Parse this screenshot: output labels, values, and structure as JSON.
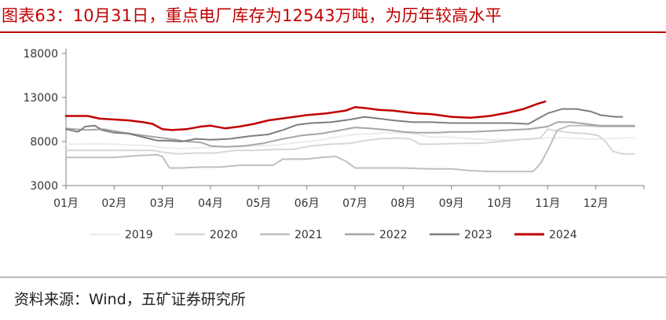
{
  "title": "图表63：10月31日，重点电厂库存为12543万吨，为历年较高水平",
  "source": "资料来源：Wind，五矿证券研究所",
  "chart_data": {
    "type": "line",
    "ylim": [
      3000,
      18000
    ],
    "yticks": [
      3000,
      8000,
      13000,
      18000
    ],
    "ytick_labels": [
      "3000",
      "8000",
      "13000",
      "18000"
    ],
    "xlim": [
      1,
      13
    ],
    "xticks": [
      1,
      2,
      3,
      4,
      5,
      6,
      7,
      8,
      9,
      10,
      11,
      12
    ],
    "xtick_labels": [
      "01月",
      "02月",
      "03月",
      "04月",
      "05月",
      "06月",
      "07月",
      "08月",
      "09月",
      "10月",
      "11月",
      "12月"
    ],
    "grid": false,
    "legend_position": "bottom",
    "series": [
      {
        "name": "2019",
        "color": "#ececec",
        "width": 2,
        "points": [
          [
            1,
            7700
          ],
          [
            1.3,
            7700
          ],
          [
            1.6,
            7750
          ],
          [
            2,
            7700
          ],
          [
            2.4,
            7600
          ],
          [
            2.8,
            7500
          ],
          [
            3,
            7300
          ],
          [
            3.4,
            7200
          ],
          [
            3.8,
            7300
          ],
          [
            4.2,
            7400
          ],
          [
            4.6,
            7400
          ],
          [
            5,
            7500
          ],
          [
            5.4,
            7600
          ],
          [
            5.8,
            7900
          ],
          [
            6.2,
            8100
          ],
          [
            6.6,
            8500
          ],
          [
            7,
            8800
          ],
          [
            7.4,
            8900
          ],
          [
            7.8,
            9000
          ],
          [
            8.2,
            8900
          ],
          [
            8.6,
            8500
          ],
          [
            9,
            8500
          ],
          [
            9.4,
            8300
          ],
          [
            9.8,
            8200
          ],
          [
            10.2,
            8200
          ],
          [
            10.6,
            8300
          ],
          [
            11,
            8400
          ],
          [
            11.4,
            8400
          ],
          [
            11.8,
            8300
          ],
          [
            12.2,
            8300
          ],
          [
            12.6,
            8400
          ],
          [
            12.8,
            8400
          ]
        ]
      },
      {
        "name": "2020",
        "color": "#d7d7d7",
        "width": 2,
        "points": [
          [
            1,
            7000
          ],
          [
            1.5,
            7000
          ],
          [
            2,
            7000
          ],
          [
            2.4,
            7000
          ],
          [
            2.8,
            7000
          ],
          [
            3,
            6800
          ],
          [
            3.3,
            6600
          ],
          [
            3.7,
            6700
          ],
          [
            4.1,
            6700
          ],
          [
            4.5,
            7000
          ],
          [
            4.9,
            7000
          ],
          [
            5.3,
            7100
          ],
          [
            5.7,
            7100
          ],
          [
            6.1,
            7500
          ],
          [
            6.5,
            7700
          ],
          [
            6.9,
            7800
          ],
          [
            7.2,
            8100
          ],
          [
            7.5,
            8300
          ],
          [
            7.9,
            8400
          ],
          [
            8.15,
            8300
          ],
          [
            8.35,
            7700
          ],
          [
            8.7,
            7700
          ],
          [
            9.2,
            7800
          ],
          [
            9.6,
            7800
          ],
          [
            10,
            8000
          ],
          [
            10.4,
            8200
          ],
          [
            10.7,
            8300
          ],
          [
            10.85,
            8400
          ],
          [
            11,
            9400
          ],
          [
            11.2,
            9200
          ],
          [
            11.5,
            9000
          ],
          [
            11.8,
            8900
          ],
          [
            12.05,
            8700
          ],
          [
            12.2,
            8000
          ],
          [
            12.35,
            6900
          ],
          [
            12.55,
            6600
          ],
          [
            12.8,
            6600
          ]
        ]
      },
      {
        "name": "2021",
        "color": "#bfbfbf",
        "width": 2,
        "points": [
          [
            1,
            6200
          ],
          [
            1.5,
            6200
          ],
          [
            2,
            6200
          ],
          [
            2.5,
            6400
          ],
          [
            2.9,
            6500
          ],
          [
            3,
            6300
          ],
          [
            3.15,
            5000
          ],
          [
            3.4,
            5000
          ],
          [
            3.8,
            5100
          ],
          [
            4.2,
            5100
          ],
          [
            4.6,
            5300
          ],
          [
            5,
            5300
          ],
          [
            5.3,
            5300
          ],
          [
            5.5,
            6000
          ],
          [
            6,
            6000
          ],
          [
            6.3,
            6200
          ],
          [
            6.6,
            6300
          ],
          [
            6.8,
            5800
          ],
          [
            7,
            5000
          ],
          [
            7.3,
            5000
          ],
          [
            7.7,
            5000
          ],
          [
            8,
            5000
          ],
          [
            8.5,
            4900
          ],
          [
            9,
            4900
          ],
          [
            9.4,
            4700
          ],
          [
            9.8,
            4600
          ],
          [
            10.2,
            4600
          ],
          [
            10.5,
            4600
          ],
          [
            10.7,
            4600
          ],
          [
            10.85,
            5500
          ],
          [
            11,
            7000
          ],
          [
            11.2,
            9300
          ],
          [
            11.45,
            9800
          ],
          [
            11.8,
            9800
          ],
          [
            12.1,
            9700
          ],
          [
            12.4,
            9700
          ],
          [
            12.8,
            9700
          ]
        ]
      },
      {
        "name": "2022",
        "color": "#a6a6a6",
        "width": 2,
        "points": [
          [
            1,
            9500
          ],
          [
            1.4,
            9300
          ],
          [
            1.8,
            9400
          ],
          [
            2.2,
            9000
          ],
          [
            2.6,
            8700
          ],
          [
            3,
            8400
          ],
          [
            3.3,
            8200
          ],
          [
            3.5,
            8000
          ],
          [
            3.8,
            7900
          ],
          [
            4,
            7500
          ],
          [
            4.3,
            7400
          ],
          [
            4.7,
            7500
          ],
          [
            5.1,
            7800
          ],
          [
            5.5,
            8300
          ],
          [
            5.9,
            8700
          ],
          [
            6.3,
            8900
          ],
          [
            6.6,
            9200
          ],
          [
            7,
            9600
          ],
          [
            7.3,
            9500
          ],
          [
            7.7,
            9300
          ],
          [
            8,
            9100
          ],
          [
            8.3,
            9000
          ],
          [
            8.7,
            9000
          ],
          [
            9,
            9100
          ],
          [
            9.4,
            9100
          ],
          [
            9.8,
            9200
          ],
          [
            10.2,
            9300
          ],
          [
            10.6,
            9400
          ],
          [
            11,
            9700
          ],
          [
            11.2,
            10200
          ],
          [
            11.5,
            10200
          ],
          [
            11.8,
            10000
          ],
          [
            12.1,
            9800
          ],
          [
            12.4,
            9800
          ],
          [
            12.8,
            9800
          ]
        ]
      },
      {
        "name": "2023",
        "color": "#7f7f7f",
        "width": 2,
        "points": [
          [
            1,
            9400
          ],
          [
            1.25,
            9100
          ],
          [
            1.4,
            9700
          ],
          [
            1.6,
            9800
          ],
          [
            1.75,
            9300
          ],
          [
            2,
            9000
          ],
          [
            2.3,
            8900
          ],
          [
            2.6,
            8500
          ],
          [
            2.9,
            8100
          ],
          [
            3.1,
            8100
          ],
          [
            3.4,
            8000
          ],
          [
            3.7,
            8300
          ],
          [
            4,
            8200
          ],
          [
            4.4,
            8300
          ],
          [
            4.8,
            8600
          ],
          [
            5.2,
            8800
          ],
          [
            5.5,
            9300
          ],
          [
            5.8,
            9900
          ],
          [
            6.1,
            10100
          ],
          [
            6.5,
            10200
          ],
          [
            6.9,
            10500
          ],
          [
            7.2,
            10800
          ],
          [
            7.5,
            10600
          ],
          [
            7.8,
            10400
          ],
          [
            8.2,
            10200
          ],
          [
            8.6,
            10200
          ],
          [
            9,
            10100
          ],
          [
            9.4,
            10100
          ],
          [
            9.8,
            10100
          ],
          [
            10.2,
            10100
          ],
          [
            10.6,
            10000
          ],
          [
            10.8,
            10600
          ],
          [
            11,
            11200
          ],
          [
            11.3,
            11700
          ],
          [
            11.6,
            11700
          ],
          [
            11.9,
            11400
          ],
          [
            12.1,
            11000
          ],
          [
            12.4,
            10800
          ],
          [
            12.55,
            10800
          ]
        ]
      },
      {
        "name": "2024",
        "color": "#c00000",
        "width": 2.5,
        "points": [
          [
            1,
            10900
          ],
          [
            1.2,
            10900
          ],
          [
            1.45,
            10900
          ],
          [
            1.7,
            10600
          ],
          [
            2,
            10500
          ],
          [
            2.3,
            10400
          ],
          [
            2.6,
            10200
          ],
          [
            2.8,
            10000
          ],
          [
            3,
            9400
          ],
          [
            3.2,
            9300
          ],
          [
            3.5,
            9400
          ],
          [
            3.8,
            9700
          ],
          [
            4,
            9800
          ],
          [
            4.3,
            9500
          ],
          [
            4.6,
            9700
          ],
          [
            4.9,
            10000
          ],
          [
            5.2,
            10400
          ],
          [
            5.6,
            10700
          ],
          [
            6,
            11000
          ],
          [
            6.4,
            11200
          ],
          [
            6.8,
            11500
          ],
          [
            7,
            11900
          ],
          [
            7.2,
            11800
          ],
          [
            7.5,
            11600
          ],
          [
            7.8,
            11500
          ],
          [
            8.1,
            11300
          ],
          [
            8.3,
            11200
          ],
          [
            8.6,
            11100
          ],
          [
            9,
            10800
          ],
          [
            9.4,
            10700
          ],
          [
            9.8,
            10900
          ],
          [
            10.2,
            11300
          ],
          [
            10.5,
            11700
          ],
          [
            10.8,
            12300
          ],
          [
            10.95,
            12543
          ]
        ]
      }
    ]
  }
}
